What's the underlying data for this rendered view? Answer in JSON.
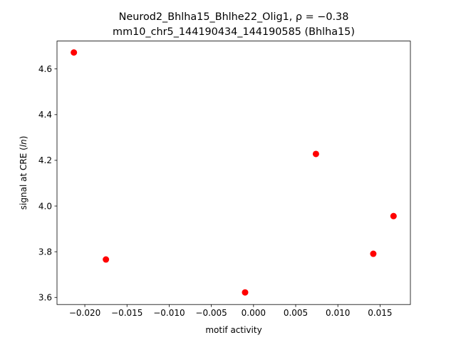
{
  "chart_data": {
    "type": "scatter",
    "title_line1": "Neurod2_Bhlha15_Bhlhe22_Olig1, ρ = −0.38",
    "title_line2": "mm10_chr5_144190434_144190585 (Bhlha15)",
    "xlabel": "motif activity",
    "ylabel": "signal at CRE (ln)",
    "xlim": [
      -0.0233,
      0.0186
    ],
    "ylim": [
      3.569,
      4.722
    ],
    "xticks": [
      -0.02,
      -0.015,
      -0.01,
      -0.005,
      0.0,
      0.005,
      0.01,
      0.015
    ],
    "xtick_labels": [
      "−0.020",
      "−0.015",
      "−0.010",
      "−0.005",
      "0.000",
      "0.005",
      "0.010",
      "0.015"
    ],
    "yticks": [
      3.6,
      3.8,
      4.0,
      4.2,
      4.4,
      4.6
    ],
    "ytick_labels": [
      "3.6",
      "3.8",
      "4.0",
      "4.2",
      "4.4",
      "4.6"
    ],
    "grid": false,
    "marker_color": "#ff0000",
    "points": [
      {
        "x": -0.0213,
        "y": 4.672
      },
      {
        "x": -0.0175,
        "y": 3.766
      },
      {
        "x": -0.001,
        "y": 3.622
      },
      {
        "x": 0.0074,
        "y": 4.228
      },
      {
        "x": 0.0142,
        "y": 3.791
      },
      {
        "x": 0.0166,
        "y": 3.956
      }
    ]
  }
}
